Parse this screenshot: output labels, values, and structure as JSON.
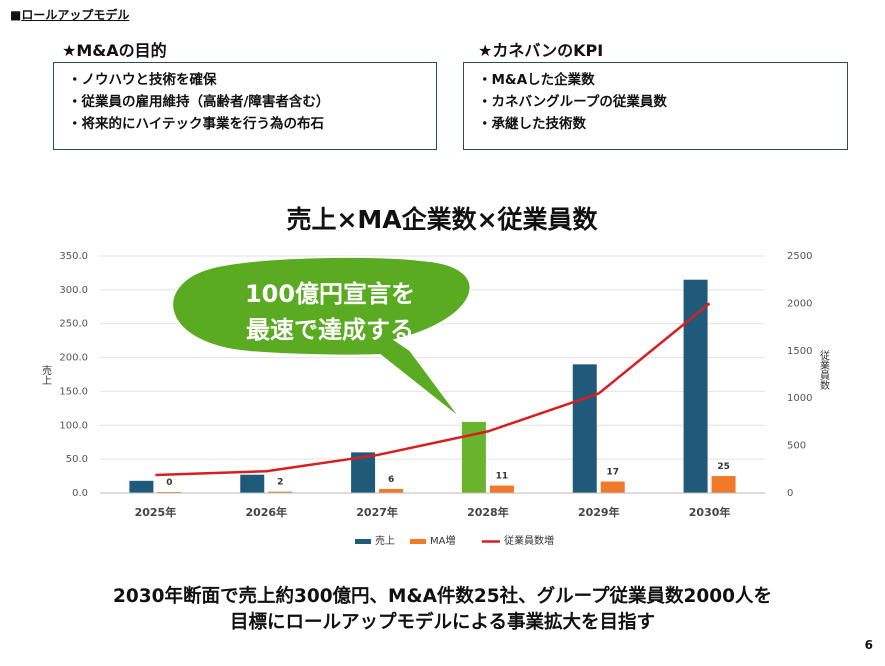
{
  "section_label": "ロールアップモデル",
  "left_box": {
    "title": "★M&Aの目的",
    "items": [
      "・ノウハウと技術を確保",
      "・従業員の雇用維持（高齢者/障害者含む）",
      "・将来的にハイテック事業を行う為の布石"
    ]
  },
  "right_box": {
    "title": "★カネバンのKPI",
    "items": [
      "・M&Aした企業数",
      "・カネバングループの従業員数",
      "・承継した技術数"
    ]
  },
  "callout": {
    "line1": "100億円宣言を",
    "line2": "最速で達成する"
  },
  "chart_data": {
    "type": "bar",
    "title": "売上×MA企業数×従業員数",
    "categories": [
      "2025年",
      "2026年",
      "2027年",
      "2028年",
      "2029年",
      "2030年"
    ],
    "series": [
      {
        "name": "売上",
        "type": "bar",
        "axis": "left",
        "color": "#1f5a7a",
        "highlight_color": "#6ab42d",
        "highlight_index": 3,
        "values": [
          18,
          27,
          60,
          105,
          190,
          315
        ]
      },
      {
        "name": "MA増",
        "type": "bar",
        "axis": "left",
        "color": "#f07a2a",
        "values": [
          0,
          2,
          6,
          11,
          17,
          25
        ],
        "labels": [
          "0",
          "2",
          "6",
          "11",
          "17",
          "25"
        ]
      },
      {
        "name": "従業員数増",
        "type": "line",
        "axis": "right",
        "color": "#d62020",
        "values": [
          190,
          230,
          400,
          650,
          1050,
          2000
        ]
      }
    ],
    "ylabel": "売上",
    "y2label": "従業員数",
    "ylim": [
      0,
      350
    ],
    "yticks": [
      "0.0",
      "50.0",
      "100.0",
      "150.0",
      "200.0",
      "250.0",
      "300.0",
      "350.0"
    ],
    "y2lim": [
      0,
      2500
    ],
    "y2ticks": [
      "0",
      "500",
      "1000",
      "1500",
      "2000",
      "2500"
    ],
    "grid": true,
    "legend": "bottom"
  },
  "footer": {
    "line1": "2030年断面で売上約300億円、M&A件数25社、グループ従業員数2000人を",
    "line2": "目標にロールアップモデルによる事業拡大を目指す"
  },
  "page_number": "6"
}
